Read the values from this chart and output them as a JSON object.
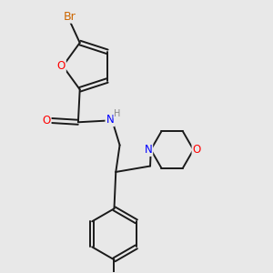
{
  "background_color": "#e8e8e8",
  "bond_color": "#1a1a1a",
  "atom_colors": {
    "Br": "#cc6600",
    "O": "#FF0000",
    "N": "#0000FF",
    "H": "#888888",
    "C": "#1a1a1a"
  },
  "font_size_atoms": 8.5,
  "figsize": [
    3.0,
    3.0
  ],
  "dpi": 100
}
